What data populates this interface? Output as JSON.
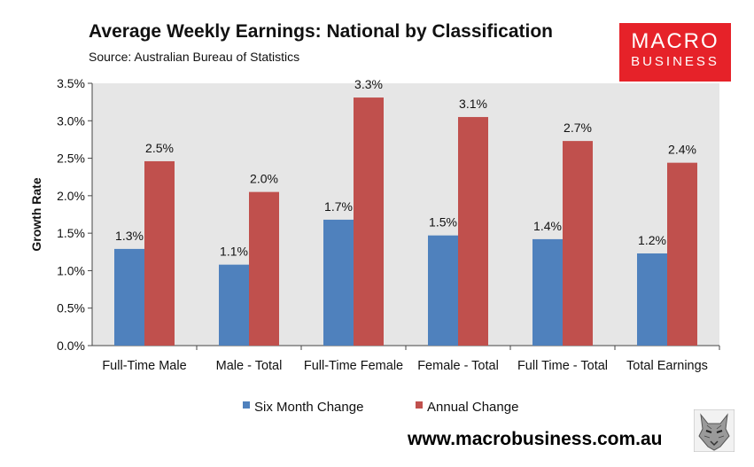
{
  "header": {
    "title": "Average Weekly Earnings: National by Classification",
    "subtitle": "Source: Australian Bureau of Statistics"
  },
  "logo": {
    "line1": "MACRO",
    "line2": "BUSINESS"
  },
  "footer": {
    "website": "www.macrobusiness.com.au"
  },
  "colors": {
    "six_month": "#4f81bd",
    "annual": "#c0504d",
    "plot_bg": "#e6e6e6",
    "logo_bg": "#e62229"
  },
  "chart_data": {
    "type": "bar",
    "title": "Average Weekly Earnings: National by Classification",
    "subtitle": "Source: Australian Bureau of Statistics",
    "ylabel": "Growth Rate",
    "xlabel": "",
    "ylim": [
      0,
      3.5
    ],
    "yticks": [
      "0.0%",
      "0.5%",
      "1.0%",
      "1.5%",
      "2.0%",
      "2.5%",
      "3.0%",
      "3.5%"
    ],
    "grid": false,
    "legend_position": "bottom",
    "categories": [
      "Full-Time Male",
      "Male - Total",
      "Full-Time Female",
      "Female - Total",
      "Full Time - Total",
      "Total Earnings"
    ],
    "series": [
      {
        "name": "Six Month Change",
        "color": "#4f81bd",
        "values": [
          1.29,
          1.08,
          1.68,
          1.47,
          1.42,
          1.23
        ],
        "labels": [
          "1.3%",
          "1.1%",
          "1.7%",
          "1.5%",
          "1.4%",
          "1.2%"
        ]
      },
      {
        "name": "Annual Change",
        "color": "#c0504d",
        "values": [
          2.46,
          2.05,
          3.31,
          3.05,
          2.73,
          2.44
        ],
        "labels": [
          "2.5%",
          "2.0%",
          "3.3%",
          "3.1%",
          "2.7%",
          "2.4%"
        ]
      }
    ]
  }
}
